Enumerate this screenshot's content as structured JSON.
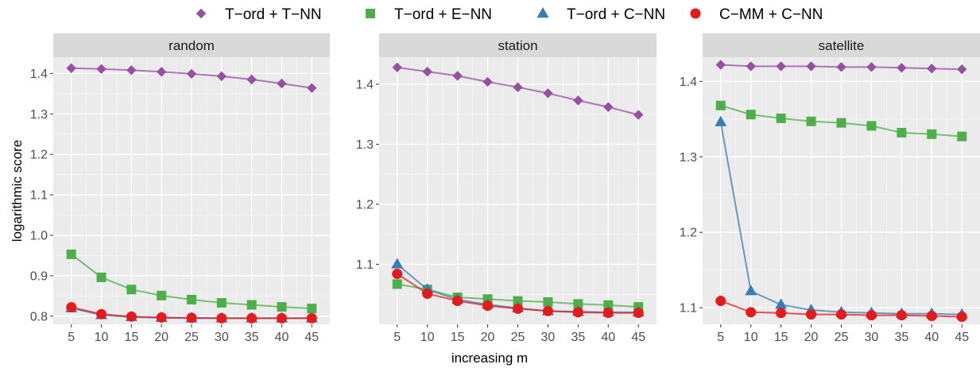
{
  "chart_data": {
    "type": "line",
    "xlabel": "increasing m",
    "ylabel": "logarithmic score",
    "legend_position": "top",
    "x": [
      5,
      10,
      15,
      20,
      25,
      30,
      35,
      40,
      45
    ],
    "x_tick_labels": [
      "5",
      "10",
      "15",
      "20",
      "25",
      "30",
      "35",
      "40",
      "45"
    ],
    "grid": true,
    "series_styles": [
      {
        "name": "T−ord + T−NN",
        "color": "#984ea3",
        "marker": "diamond"
      },
      {
        "name": "T−ord + E−NN",
        "color": "#4daf4a",
        "marker": "square"
      },
      {
        "name": "T−ord + C−NN",
        "color": "#377eb8",
        "marker": "triangle"
      },
      {
        "name": "C−MM + C−NN",
        "color": "#e41a1c",
        "marker": "circle"
      }
    ],
    "panels": [
      {
        "title": "random",
        "ylim": [
          0.78,
          1.44
        ],
        "y_ticks": [
          0.8,
          0.9,
          1.0,
          1.1,
          1.2,
          1.3,
          1.4
        ],
        "y_tick_labels": [
          "0.8",
          "0.9",
          "1.0",
          "1.1",
          "1.2",
          "1.3",
          "1.4"
        ],
        "series": [
          {
            "name": "T−ord + T−NN",
            "values": [
              1.413,
              1.411,
              1.408,
              1.404,
              1.399,
              1.393,
              1.385,
              1.375,
              1.364
            ]
          },
          {
            "name": "T−ord + E−NN",
            "values": [
              0.953,
              0.896,
              0.866,
              0.851,
              0.841,
              0.833,
              0.828,
              0.823,
              0.819
            ]
          },
          {
            "name": "T−ord + C−NN",
            "values": [
              0.82,
              0.803,
              0.798,
              0.796,
              0.795,
              0.795,
              0.795,
              0.795,
              0.795
            ]
          },
          {
            "name": "C−MM + C−NN",
            "values": [
              0.822,
              0.805,
              0.799,
              0.797,
              0.796,
              0.795,
              0.795,
              0.795,
              0.795
            ]
          }
        ]
      },
      {
        "title": "station",
        "ylim": [
          1.0,
          1.445
        ],
        "y_ticks": [
          1.1,
          1.2,
          1.3,
          1.4
        ],
        "y_tick_labels": [
          "1.1",
          "1.2",
          "1.3",
          "1.4"
        ],
        "series": [
          {
            "name": "T−ord + T−NN",
            "values": [
              1.428,
              1.421,
              1.414,
              1.404,
              1.395,
              1.385,
              1.373,
              1.362,
              1.349
            ]
          },
          {
            "name": "T−ord + E−NN",
            "values": [
              1.067,
              1.058,
              1.045,
              1.042,
              1.039,
              1.037,
              1.034,
              1.032,
              1.029
            ]
          },
          {
            "name": "T−ord + C−NN",
            "values": [
              1.1,
              1.058,
              1.041,
              1.033,
              1.027,
              1.022,
              1.021,
              1.02,
              1.02
            ]
          },
          {
            "name": "C−MM + C−NN",
            "values": [
              1.084,
              1.051,
              1.039,
              1.031,
              1.026,
              1.022,
              1.02,
              1.019,
              1.019
            ]
          }
        ]
      },
      {
        "title": "satellite",
        "ylim": [
          1.078,
          1.432
        ],
        "y_ticks": [
          1.1,
          1.2,
          1.3,
          1.4
        ],
        "y_tick_labels": [
          "1.1",
          "1.2",
          "1.3",
          "1.4"
        ],
        "series": [
          {
            "name": "T−ord + T−NN",
            "values": [
              1.422,
              1.42,
              1.42,
              1.42,
              1.419,
              1.419,
              1.418,
              1.417,
              1.416
            ]
          },
          {
            "name": "T−ord + E−NN",
            "values": [
              1.368,
              1.356,
              1.351,
              1.347,
              1.345,
              1.341,
              1.332,
              1.33,
              1.327
            ]
          },
          {
            "name": "T−ord + C−NN",
            "values": [
              1.346,
              1.122,
              1.104,
              1.097,
              1.094,
              1.093,
              1.092,
              1.092,
              1.091
            ]
          },
          {
            "name": "C−MM + C−NN",
            "values": [
              1.109,
              1.094,
              1.093,
              1.091,
              1.091,
              1.09,
              1.09,
              1.089,
              1.088
            ]
          }
        ]
      }
    ]
  }
}
